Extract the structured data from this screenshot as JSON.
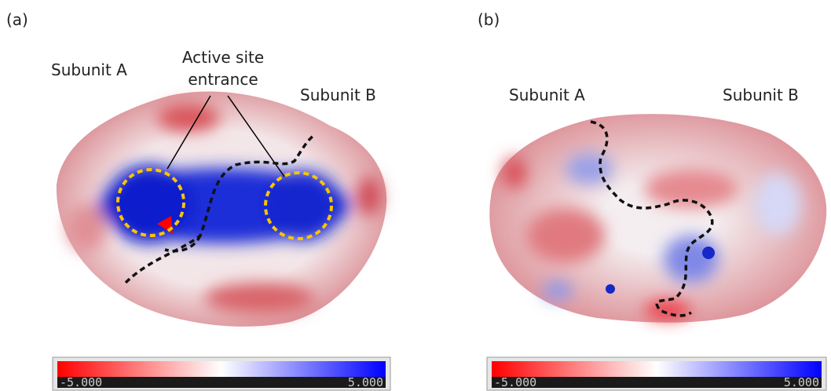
{
  "panels": [
    {
      "label": "(a)",
      "subunit_a": "Subunit A",
      "subunit_b": "Subunit B",
      "annotation": [
        "Active site",
        "entrance"
      ],
      "colorbar": {
        "min_label": "-5.000",
        "max_label": "5.000"
      }
    },
    {
      "label": "(b)",
      "subunit_a": "Subunit A",
      "subunit_b": "Subunit B",
      "colorbar": {
        "min_label": "-5.000",
        "max_label": "5.000"
      }
    }
  ]
}
